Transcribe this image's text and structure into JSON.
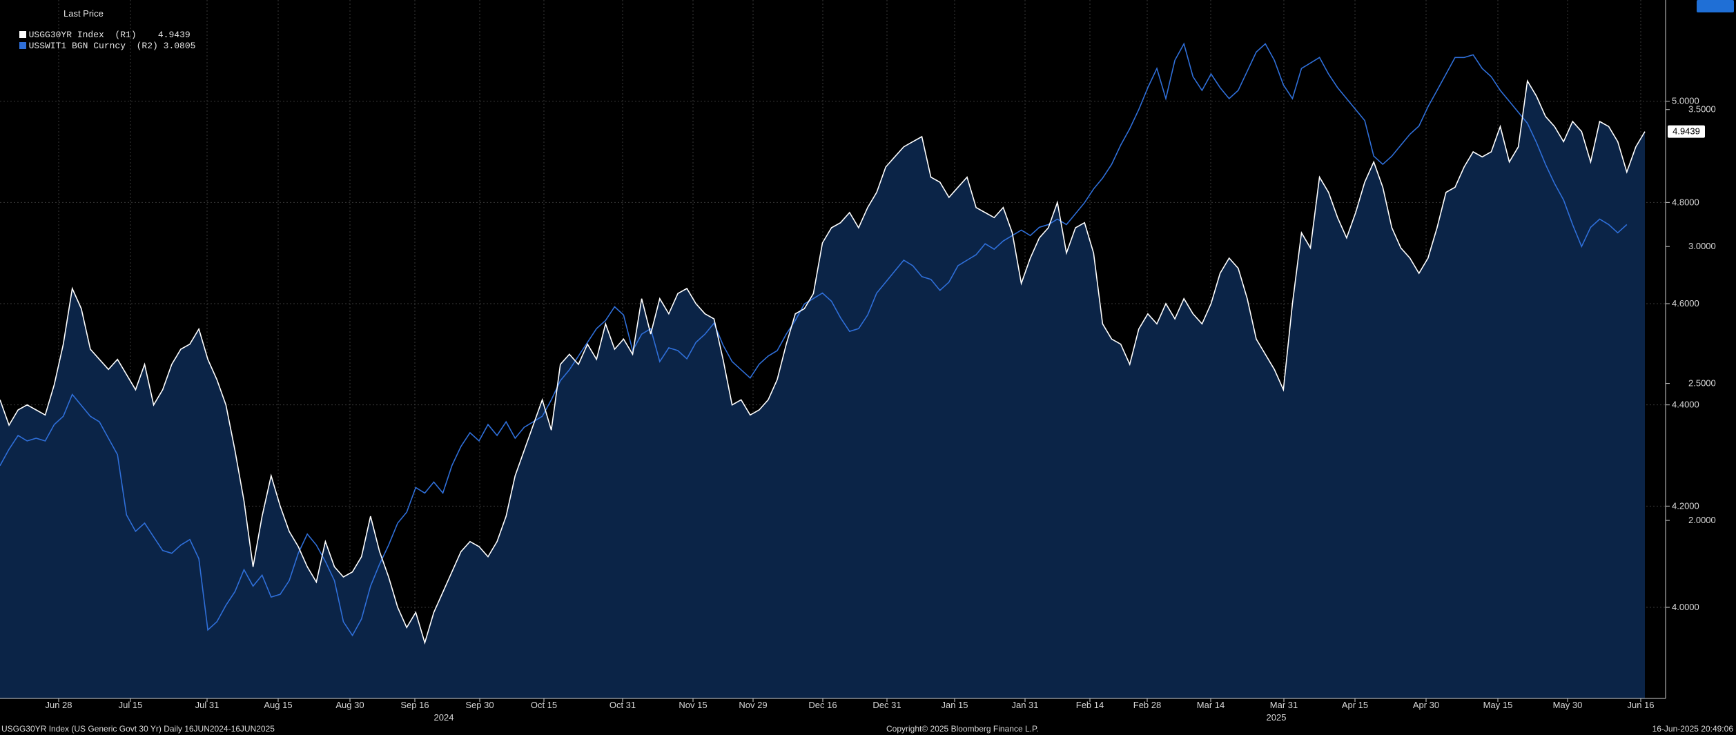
{
  "legend": {
    "title": "Last Price",
    "series1_label": "USGG30YR Index  (R1)",
    "series1_value": "4.9439",
    "series2_label": "USSWIT1 BGN Curncy  (R2)",
    "series2_value": "3.0805"
  },
  "footer": {
    "left": "USGG30YR Index (US Generic Govt 30 Yr)  Daily 16JUN2024-16JUN2025",
    "center": "Copyright© 2025 Bloomberg Finance L.P.",
    "right": "16-Jun-2025 20:49:06"
  },
  "chart_data": {
    "type": "line",
    "x_ticks": [
      "Jun 28",
      "Jul 15",
      "Jul 31",
      "Aug 15",
      "Aug 30",
      "Sep 16",
      "Sep 30",
      "Oct 15",
      "Oct 31",
      "Nov 15",
      "Nov 29",
      "Dec 16",
      "Dec 31",
      "Jan 15",
      "Jan 31",
      "Feb 14",
      "Feb 28",
      "Mar 14",
      "Mar 31",
      "Apr 15",
      "Apr 30",
      "May 15",
      "May 30",
      "Jun 16"
    ],
    "x_year_labels": [
      "2024",
      "2025"
    ],
    "y_axis_r1": {
      "ticks": [
        "4.0000",
        "4.2000",
        "4.4000",
        "4.6000",
        "4.8000",
        "5.0000"
      ],
      "range": [
        3.82,
        5.2
      ]
    },
    "y_axis_r2": {
      "ticks": [
        "2.0000",
        "2.5000",
        "3.0000",
        "3.5000"
      ],
      "range": [
        1.35,
        3.9
      ]
    },
    "grid": true,
    "last_value_tags": {
      "r1": "4.9439",
      "r2": "3.0805"
    },
    "colors": {
      "series1": "#ffffff",
      "series2": "#2f6fd9",
      "area": "#0b2447",
      "tag2": "#1f6fd6"
    },
    "series": [
      {
        "name": "USGG30YR Index  (R1)",
        "axis": "r1",
        "values": [
          4.41,
          4.36,
          4.39,
          4.4,
          4.39,
          4.38,
          4.44,
          4.52,
          4.63,
          4.59,
          4.51,
          4.49,
          4.47,
          4.49,
          4.46,
          4.43,
          4.48,
          4.4,
          4.43,
          4.48,
          4.51,
          4.52,
          4.55,
          4.49,
          4.45,
          4.4,
          4.31,
          4.21,
          4.08,
          4.18,
          4.26,
          4.2,
          4.15,
          4.12,
          4.08,
          4.05,
          4.13,
          4.08,
          4.06,
          4.07,
          4.1,
          4.18,
          4.11,
          4.06,
          4.0,
          3.96,
          3.99,
          3.93,
          3.99,
          4.03,
          4.07,
          4.11,
          4.13,
          4.12,
          4.1,
          4.13,
          4.18,
          4.26,
          4.31,
          4.36,
          4.41,
          4.35,
          4.48,
          4.5,
          4.48,
          4.52,
          4.49,
          4.56,
          4.51,
          4.53,
          4.5,
          4.61,
          4.54,
          4.61,
          4.58,
          4.62,
          4.63,
          4.6,
          4.58,
          4.57,
          4.49,
          4.4,
          4.41,
          4.38,
          4.39,
          4.41,
          4.45,
          4.52,
          4.58,
          4.59,
          4.62,
          4.72,
          4.75,
          4.76,
          4.78,
          4.75,
          4.79,
          4.82,
          4.87,
          4.89,
          4.91,
          4.92,
          4.93,
          4.85,
          4.84,
          4.81,
          4.83,
          4.85,
          4.79,
          4.78,
          4.77,
          4.79,
          4.74,
          4.64,
          4.69,
          4.73,
          4.75,
          4.8,
          4.7,
          4.75,
          4.76,
          4.7,
          4.56,
          4.53,
          4.52,
          4.48,
          4.55,
          4.58,
          4.56,
          4.6,
          4.57,
          4.61,
          4.58,
          4.56,
          4.6,
          4.66,
          4.69,
          4.67,
          4.61,
          4.53,
          4.5,
          4.47,
          4.43,
          4.6,
          4.74,
          4.71,
          4.85,
          4.82,
          4.77,
          4.73,
          4.78,
          4.84,
          4.88,
          4.83,
          4.75,
          4.71,
          4.69,
          4.66,
          4.69,
          4.75,
          4.82,
          4.83,
          4.87,
          4.9,
          4.89,
          4.9,
          4.95,
          4.88,
          4.91,
          5.04,
          5.01,
          4.97,
          4.95,
          4.92,
          4.96,
          4.94,
          4.88,
          4.96,
          4.95,
          4.92,
          4.86,
          4.91,
          4.94
        ]
      },
      {
        "name": "USSWIT1 BGN Curncy  (R2)",
        "axis": "r2",
        "values": [
          2.2,
          2.26,
          2.31,
          2.29,
          2.3,
          2.29,
          2.35,
          2.38,
          2.46,
          2.42,
          2.38,
          2.36,
          2.3,
          2.24,
          2.02,
          1.96,
          1.99,
          1.94,
          1.89,
          1.88,
          1.91,
          1.93,
          1.86,
          1.6,
          1.63,
          1.69,
          1.74,
          1.82,
          1.76,
          1.8,
          1.72,
          1.73,
          1.78,
          1.88,
          1.95,
          1.91,
          1.85,
          1.78,
          1.63,
          1.58,
          1.64,
          1.76,
          1.84,
          1.91,
          1.99,
          2.03,
          2.12,
          2.1,
          2.14,
          2.1,
          2.2,
          2.27,
          2.32,
          2.29,
          2.35,
          2.31,
          2.36,
          2.3,
          2.34,
          2.36,
          2.38,
          2.44,
          2.51,
          2.55,
          2.6,
          2.65,
          2.7,
          2.73,
          2.78,
          2.75,
          2.62,
          2.68,
          2.7,
          2.58,
          2.63,
          2.62,
          2.59,
          2.65,
          2.68,
          2.72,
          2.64,
          2.58,
          2.55,
          2.52,
          2.57,
          2.6,
          2.62,
          2.68,
          2.73,
          2.79,
          2.81,
          2.83,
          2.8,
          2.74,
          2.69,
          2.7,
          2.75,
          2.83,
          2.87,
          2.91,
          2.95,
          2.93,
          2.89,
          2.88,
          2.84,
          2.87,
          2.93,
          2.95,
          2.97,
          3.01,
          2.99,
          3.02,
          3.04,
          3.06,
          3.04,
          3.07,
          3.08,
          3.1,
          3.08,
          3.12,
          3.16,
          3.21,
          3.25,
          3.3,
          3.37,
          3.43,
          3.5,
          3.58,
          3.65,
          3.54,
          3.68,
          3.74,
          3.62,
          3.57,
          3.63,
          3.58,
          3.54,
          3.57,
          3.64,
          3.71,
          3.74,
          3.68,
          3.59,
          3.54,
          3.65,
          3.67,
          3.69,
          3.63,
          3.58,
          3.54,
          3.5,
          3.46,
          3.33,
          3.3,
          3.33,
          3.37,
          3.41,
          3.44,
          3.51,
          3.57,
          3.63,
          3.69,
          3.69,
          3.7,
          3.65,
          3.62,
          3.57,
          3.53,
          3.49,
          3.45,
          3.38,
          3.3,
          3.23,
          3.17,
          3.08,
          3.0,
          3.07,
          3.1,
          3.08,
          3.05,
          3.08
        ]
      }
    ]
  }
}
